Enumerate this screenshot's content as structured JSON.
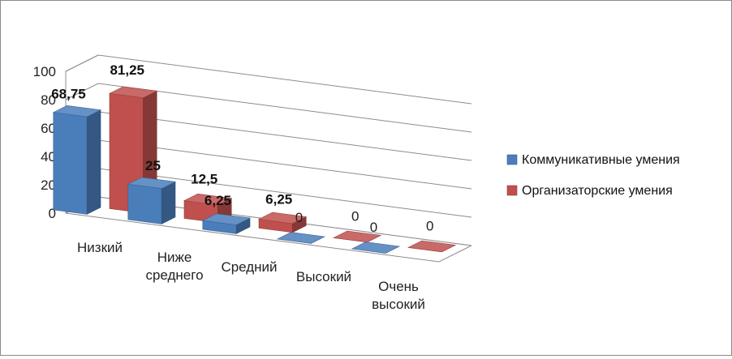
{
  "chart_data": {
    "type": "bar",
    "variant": "3d-clustered-column",
    "title": "",
    "xlabel": "",
    "ylabel": "",
    "ylim": [
      0,
      100
    ],
    "yticks": [
      0,
      20,
      40,
      60,
      80,
      100
    ],
    "grid": true,
    "legend_position": "right",
    "categories": [
      [
        "Низкий"
      ],
      [
        "Ниже",
        "среднего"
      ],
      [
        "Средний"
      ],
      [
        "Высокий"
      ],
      [
        "Очень",
        "высокий"
      ]
    ],
    "series": [
      {
        "name": "Коммуникативные умения",
        "values": [
          68.75,
          25,
          6.25,
          0,
          0
        ],
        "labels": [
          "68,75",
          "25",
          "6,25",
          "0",
          "0"
        ],
        "color": "#4a7ebb"
      },
      {
        "name": "Организаторские умения",
        "values": [
          81.25,
          12.5,
          6.25,
          0,
          0
        ],
        "labels": [
          "81,25",
          "12,5",
          "6,25",
          "0",
          "0"
        ],
        "color": "#c0504d"
      }
    ]
  }
}
